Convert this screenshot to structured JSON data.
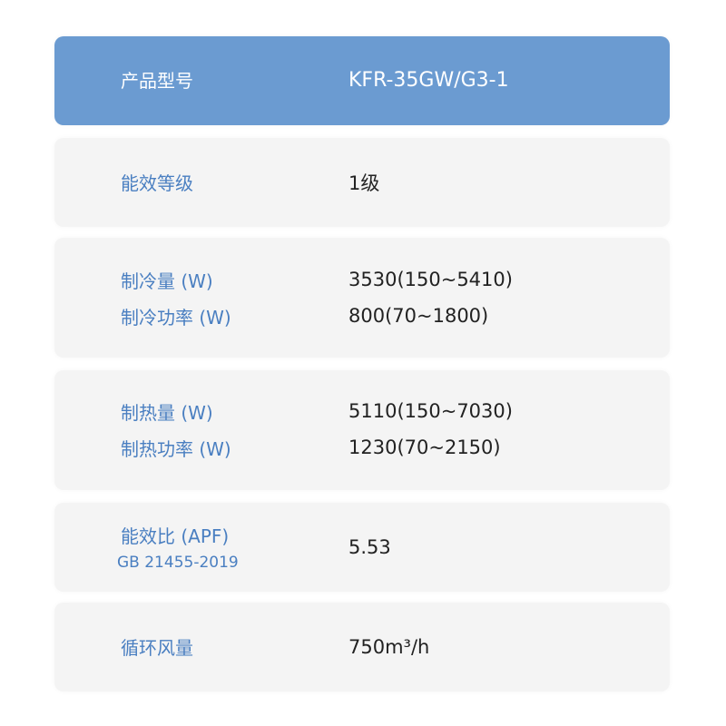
{
  "header": {
    "label": "产品型号",
    "value": "KFR-35GW/G3-1"
  },
  "rows": [
    {
      "lines": [
        {
          "label": "能效等级",
          "value": "1级"
        }
      ]
    },
    {
      "lines": [
        {
          "label": "制冷量 (W)",
          "value": "3530(150~5410)"
        },
        {
          "label": "制冷功率 (W)",
          "value": "800(70~1800)"
        }
      ]
    },
    {
      "lines": [
        {
          "label": "制热量 (W)",
          "value": "5110(150~7030)"
        },
        {
          "label": "制热功率 (W)",
          "value": "1230(70~2150)"
        }
      ]
    },
    {
      "label": "能效比 (APF)",
      "sublabel": "GB 21455-2019",
      "value": "5.53"
    },
    {
      "lines": [
        {
          "label": "循环风量",
          "value": "750m³/h"
        }
      ]
    }
  ],
  "colors": {
    "header_bg": "#6b9bd1",
    "label": "#4a7fc1",
    "row_bg": "#f4f4f4"
  }
}
